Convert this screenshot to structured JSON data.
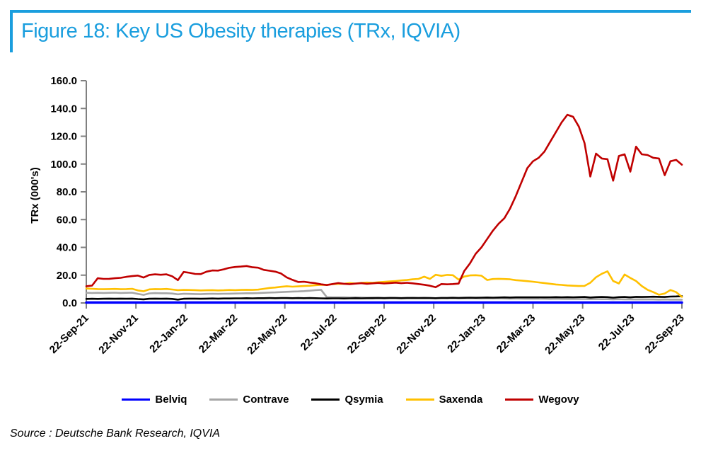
{
  "figure": {
    "title": "Figure 18: Key US Obesity therapies (TRx, IQVIA)",
    "source": "Source : Deutsche Bank Research, IQVIA",
    "accent_color": "#1A9EDE",
    "axis_color": "#808080"
  },
  "chart_data": {
    "type": "line",
    "title": "Key US Obesity therapies (TRx, IQVIA)",
    "xlabel": "",
    "ylabel": "TRx (000's)",
    "ylim": [
      0,
      160
    ],
    "ytick_labels": [
      "0.0",
      "20.0",
      "40.0",
      "60.0",
      "80.0",
      "100.0",
      "120.0",
      "140.0",
      "160.0"
    ],
    "x_tick_labels": [
      "22-Sep-21",
      "22-Nov-21",
      "22-Jan-22",
      "22-Mar-22",
      "22-May-22",
      "22-Jul-22",
      "22-Sep-22",
      "22-Nov-22",
      "22-Jan-23",
      "22-Mar-23",
      "22-May-23",
      "22-Jul-23",
      "22-Sep-23"
    ],
    "x_frequency": "weekly",
    "grid": false,
    "legend_position": "bottom",
    "series": [
      {
        "name": "Belviq",
        "color": "#0000FF",
        "values": [
          0.3,
          0.3,
          0.3,
          0.3,
          0.3,
          0.3,
          0.3,
          0.3,
          0.3,
          0.3,
          0.3,
          0.3,
          0.3,
          0.3,
          0.3,
          0.3,
          0.3,
          0.3,
          0.3,
          0.3,
          0.3,
          0.3,
          0.3,
          0.3,
          0.3,
          0.3,
          0.3,
          0.3,
          0.3,
          0.3,
          0.3,
          0.3,
          0.3,
          0.3,
          0.3,
          0.3,
          0.3,
          0.3,
          0.3,
          0.3,
          0.3,
          0.3,
          0.3,
          0.3,
          0.3,
          0.3,
          0.3,
          0.3,
          0.3,
          0.3,
          0.3,
          0.3,
          0.3,
          0.3,
          0.3,
          0.3,
          0.3,
          0.3,
          0.3,
          0.3,
          0.3,
          0.3,
          0.3,
          0.3,
          0.3,
          0.3,
          0.3,
          0.3,
          0.3,
          0.3,
          0.3,
          0.3,
          0.3,
          0.3,
          0.3,
          0.3,
          0.3,
          0.3,
          0.3,
          0.3,
          0.3,
          0.3,
          0.3,
          0.3,
          0.3,
          0.3,
          0.3,
          0.3,
          0.3,
          0.3,
          0.3,
          0.3,
          0.3,
          0.3,
          0.3,
          0.3,
          0.3,
          0.3,
          0.3,
          0.3,
          0.3,
          0.3,
          0.3,
          0.3,
          0.3
        ]
      },
      {
        "name": "Contrave",
        "color": "#A6A6A6",
        "values": [
          7.3,
          7.2,
          7.3,
          7.2,
          7.3,
          7.4,
          7.2,
          7.3,
          7.4,
          6.5,
          5.8,
          6.9,
          7.1,
          7.0,
          7.0,
          6.8,
          6.2,
          6.6,
          6.5,
          6.4,
          6.3,
          6.5,
          6.6,
          6.5,
          6.6,
          6.7,
          6.8,
          6.9,
          7.0,
          7.0,
          7.1,
          7.3,
          7.5,
          7.6,
          7.8,
          8.0,
          8.2,
          8.3,
          8.5,
          8.8,
          9.2,
          9.5,
          4.2,
          4.0,
          4.1,
          4.0,
          3.9,
          4.0,
          3.9,
          3.8,
          3.9,
          3.8,
          3.7,
          3.8,
          3.7,
          3.6,
          3.7,
          3.6,
          3.5,
          3.6,
          3.5,
          3.4,
          3.5,
          3.4,
          3.5,
          3.4,
          3.3,
          3.4,
          3.3,
          3.2,
          3.3,
          3.2,
          3.3,
          3.2,
          3.1,
          3.2,
          3.1,
          3.0,
          3.1,
          3.0,
          3.0,
          2.9,
          3.0,
          2.9,
          2.8,
          2.9,
          2.8,
          2.8,
          2.7,
          2.8,
          2.7,
          2.7,
          2.6,
          2.7,
          2.6,
          2.6,
          2.5,
          2.6,
          2.5,
          2.5,
          2.4,
          2.5,
          2.4,
          2.4,
          2.3
        ]
      },
      {
        "name": "Qsymia",
        "color": "#000000",
        "values": [
          2.9,
          3.0,
          2.9,
          3.0,
          3.1,
          3.0,
          3.1,
          3.0,
          3.1,
          2.8,
          2.6,
          3.0,
          3.1,
          3.0,
          3.1,
          2.9,
          2.4,
          3.0,
          3.1,
          3.1,
          3.0,
          3.1,
          3.2,
          3.1,
          3.2,
          3.2,
          3.3,
          3.3,
          3.4,
          3.3,
          3.4,
          3.4,
          3.5,
          3.4,
          3.5,
          3.5,
          3.4,
          3.5,
          3.4,
          3.5,
          3.4,
          3.3,
          3.2,
          3.3,
          3.3,
          3.2,
          3.3,
          3.4,
          3.3,
          3.4,
          3.4,
          3.5,
          3.4,
          3.5,
          3.5,
          3.4,
          3.5,
          3.6,
          3.5,
          3.6,
          3.5,
          3.4,
          3.6,
          3.6,
          3.7,
          3.6,
          3.7,
          3.8,
          3.7,
          3.8,
          3.9,
          3.8,
          3.9,
          4.0,
          3.9,
          4.0,
          4.0,
          4.1,
          4.0,
          4.1,
          4.0,
          4.1,
          4.2,
          4.1,
          4.2,
          4.1,
          4.2,
          4.3,
          3.9,
          4.2,
          4.3,
          4.2,
          3.8,
          4.2,
          4.3,
          4.0,
          4.4,
          4.3,
          4.4,
          4.5,
          4.4,
          4.3,
          4.6,
          4.7,
          4.9
        ]
      },
      {
        "name": "Saxenda",
        "color": "#FFC000",
        "values": [
          10.4,
          10.2,
          10.0,
          9.9,
          10.0,
          10.1,
          9.9,
          10.0,
          10.2,
          9.0,
          8.4,
          9.8,
          10.0,
          9.9,
          10.1,
          9.7,
          9.2,
          9.4,
          9.3,
          9.2,
          9.0,
          9.1,
          9.2,
          9.0,
          9.1,
          9.3,
          9.2,
          9.4,
          9.5,
          9.4,
          9.6,
          10.2,
          10.8,
          11.1,
          11.6,
          12.0,
          11.7,
          11.9,
          12.2,
          12.4,
          12.8,
          13.1,
          13.0,
          13.5,
          13.7,
          13.8,
          14.3,
          14.0,
          14.4,
          14.7,
          14.5,
          14.9,
          15.2,
          15.5,
          15.8,
          16.2,
          16.5,
          17.0,
          17.3,
          18.9,
          17.3,
          20.3,
          19.5,
          20.2,
          20.0,
          16.8,
          19.0,
          19.8,
          20.0,
          19.6,
          16.5,
          17.2,
          17.4,
          17.2,
          17.0,
          16.4,
          16.1,
          15.7,
          15.3,
          14.8,
          14.3,
          13.8,
          13.3,
          13.0,
          12.6,
          12.4,
          12.2,
          12.3,
          14.5,
          18.5,
          21.0,
          22.8,
          15.8,
          14.0,
          20.5,
          18.0,
          15.8,
          12.2,
          9.5,
          7.8,
          5.9,
          6.8,
          9.3,
          7.8,
          4.4
        ]
      },
      {
        "name": "Wegovy",
        "color": "#C00000",
        "values": [
          12.0,
          12.5,
          17.8,
          17.3,
          17.4,
          17.8,
          18.1,
          18.8,
          19.3,
          19.7,
          18.3,
          20.2,
          20.6,
          20.3,
          20.6,
          19.2,
          16.4,
          22.3,
          21.7,
          20.9,
          20.8,
          22.5,
          23.4,
          23.3,
          24.2,
          25.3,
          25.9,
          26.2,
          26.6,
          25.7,
          25.4,
          23.8,
          23.2,
          22.5,
          21.2,
          18.4,
          16.6,
          15.1,
          15.3,
          14.7,
          14.2,
          13.4,
          12.9,
          13.6,
          14.3,
          13.8,
          13.5,
          13.9,
          14.2,
          13.8,
          14.1,
          14.4,
          14.0,
          14.3,
          14.6,
          14.2,
          14.5,
          14.1,
          13.6,
          13.1,
          12.4,
          11.3,
          13.6,
          13.4,
          13.6,
          13.9,
          23.0,
          28.5,
          35.4,
          40.0,
          46.0,
          52.0,
          57.0,
          61.0,
          68.0,
          77.0,
          87.0,
          97.0,
          102.0,
          104.5,
          109.0,
          116.0,
          123.0,
          130.0,
          135.5,
          134.0,
          127.0,
          115.0,
          91.0,
          107.5,
          104.0,
          103.5,
          88.0,
          105.8,
          107.0,
          94.5,
          112.5,
          107.0,
          106.5,
          104.5,
          104.0,
          92.0,
          102.0,
          103.0,
          99.5
        ]
      }
    ]
  }
}
